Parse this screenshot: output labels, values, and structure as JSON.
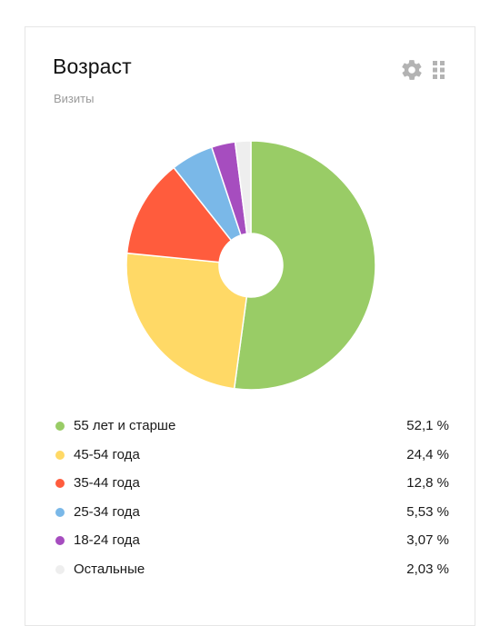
{
  "widget": {
    "title": "Возраст",
    "subtitle": "Визиты",
    "settings_icon": "gear-icon",
    "drag_icon": "drag-handle-icon"
  },
  "chart_data": {
    "type": "pie",
    "donut": true,
    "start": "top",
    "direction": "clockwise",
    "slices": [
      {
        "label": "55 лет и старше",
        "value": 52.1,
        "display": "52,1 %",
        "color": "#99cc66"
      },
      {
        "label": "45-54 года",
        "value": 24.4,
        "display": "24,4 %",
        "color": "#ffd966"
      },
      {
        "label": "35-44 года",
        "value": 12.8,
        "display": "12,8 %",
        "color": "#ff5c3d"
      },
      {
        "label": "25-34 года",
        "value": 5.53,
        "display": "5,53 %",
        "color": "#7ab8e8"
      },
      {
        "label": "18-24 года",
        "value": 3.07,
        "display": "3,07 %",
        "color": "#a64dbf"
      },
      {
        "label": "Остальные",
        "value": 2.03,
        "display": "2,03 %",
        "color": "#eeeeee"
      }
    ]
  }
}
